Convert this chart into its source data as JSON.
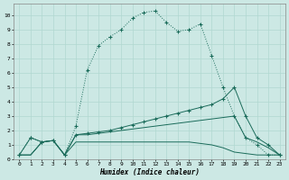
{
  "xlabel": "Humidex (Indice chaleur)",
  "bg_color": "#cce8e4",
  "line_color": "#1a6b5a",
  "grid_color": "#b0d8d0",
  "xlim": [
    -0.5,
    23.5
  ],
  "ylim": [
    0,
    10.8
  ],
  "xticks": [
    0,
    1,
    2,
    3,
    4,
    5,
    6,
    7,
    8,
    9,
    10,
    11,
    12,
    13,
    14,
    15,
    16,
    17,
    18,
    19,
    20,
    21,
    22,
    23
  ],
  "yticks": [
    0,
    1,
    2,
    3,
    4,
    5,
    6,
    7,
    8,
    9,
    10
  ],
  "line1_x": [
    0,
    1,
    2,
    3,
    4,
    5,
    6,
    7,
    8,
    9,
    10,
    11,
    12,
    13,
    14,
    15,
    16,
    17,
    18,
    19,
    20,
    21,
    22,
    23
  ],
  "line1_y": [
    0.3,
    1.5,
    1.2,
    1.3,
    0.3,
    2.3,
    6.2,
    7.9,
    8.5,
    9.0,
    9.8,
    10.2,
    10.3,
    9.5,
    8.9,
    9.0,
    9.4,
    7.2,
    5.0,
    3.0,
    1.5,
    1.0,
    0.3,
    0.3
  ],
  "line2_x": [
    0,
    1,
    2,
    3,
    4,
    5,
    6,
    7,
    8,
    9,
    10,
    11,
    12,
    13,
    14,
    15,
    16,
    17,
    18,
    19,
    20,
    21,
    22,
    23
  ],
  "line2_y": [
    0.3,
    1.5,
    1.2,
    1.3,
    0.3,
    1.7,
    1.8,
    1.9,
    2.0,
    2.2,
    2.4,
    2.6,
    2.8,
    3.0,
    3.2,
    3.4,
    3.6,
    3.8,
    4.2,
    5.0,
    3.0,
    1.5,
    1.0,
    0.3
  ],
  "line3_x": [
    0,
    1,
    2,
    3,
    4,
    5,
    6,
    7,
    8,
    9,
    10,
    11,
    12,
    13,
    14,
    15,
    16,
    17,
    18,
    19,
    20,
    21,
    22,
    23
  ],
  "line3_y": [
    0.3,
    0.3,
    1.2,
    1.3,
    0.3,
    1.7,
    1.7,
    1.8,
    1.9,
    2.0,
    2.1,
    2.2,
    2.3,
    2.4,
    2.5,
    2.6,
    2.7,
    2.8,
    2.9,
    3.0,
    1.5,
    1.2,
    0.8,
    0.3
  ],
  "line4_x": [
    0,
    1,
    2,
    3,
    4,
    5,
    6,
    7,
    8,
    9,
    10,
    11,
    12,
    13,
    14,
    15,
    16,
    17,
    18,
    19,
    20,
    21,
    22,
    23
  ],
  "line4_y": [
    0.3,
    0.3,
    1.2,
    1.3,
    0.3,
    1.2,
    1.2,
    1.2,
    1.2,
    1.2,
    1.2,
    1.2,
    1.2,
    1.2,
    1.2,
    1.2,
    1.1,
    1.0,
    0.8,
    0.5,
    0.4,
    0.3,
    0.3,
    0.3
  ]
}
